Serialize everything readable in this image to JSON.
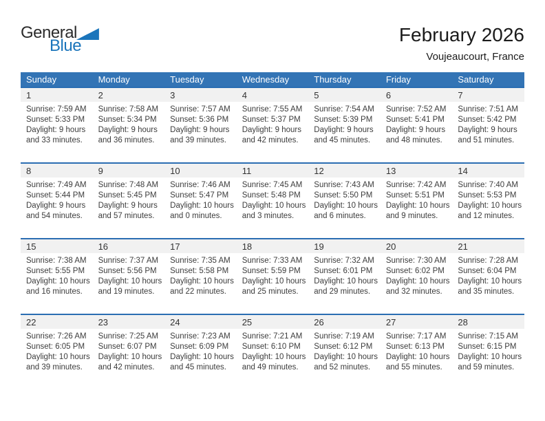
{
  "logo": {
    "text_general": "General",
    "text_blue": "Blue"
  },
  "header": {
    "month_title": "February 2026",
    "location": "Voujeaucourt, France"
  },
  "colors": {
    "header_blue": "#3374b5",
    "line_blue": "#2a6db2",
    "strip_gray": "#f1f1f1",
    "logo_blue": "#1b75bb"
  },
  "calendar": {
    "weekdays": [
      "Sunday",
      "Monday",
      "Tuesday",
      "Wednesday",
      "Thursday",
      "Friday",
      "Saturday"
    ],
    "weeks": [
      [
        {
          "day": "1",
          "sunrise": "Sunrise: 7:59 AM",
          "sunset": "Sunset: 5:33 PM",
          "daylight1": "Daylight: 9 hours",
          "daylight2": "and 33 minutes."
        },
        {
          "day": "2",
          "sunrise": "Sunrise: 7:58 AM",
          "sunset": "Sunset: 5:34 PM",
          "daylight1": "Daylight: 9 hours",
          "daylight2": "and 36 minutes."
        },
        {
          "day": "3",
          "sunrise": "Sunrise: 7:57 AM",
          "sunset": "Sunset: 5:36 PM",
          "daylight1": "Daylight: 9 hours",
          "daylight2": "and 39 minutes."
        },
        {
          "day": "4",
          "sunrise": "Sunrise: 7:55 AM",
          "sunset": "Sunset: 5:37 PM",
          "daylight1": "Daylight: 9 hours",
          "daylight2": "and 42 minutes."
        },
        {
          "day": "5",
          "sunrise": "Sunrise: 7:54 AM",
          "sunset": "Sunset: 5:39 PM",
          "daylight1": "Daylight: 9 hours",
          "daylight2": "and 45 minutes."
        },
        {
          "day": "6",
          "sunrise": "Sunrise: 7:52 AM",
          "sunset": "Sunset: 5:41 PM",
          "daylight1": "Daylight: 9 hours",
          "daylight2": "and 48 minutes."
        },
        {
          "day": "7",
          "sunrise": "Sunrise: 7:51 AM",
          "sunset": "Sunset: 5:42 PM",
          "daylight1": "Daylight: 9 hours",
          "daylight2": "and 51 minutes."
        }
      ],
      [
        {
          "day": "8",
          "sunrise": "Sunrise: 7:49 AM",
          "sunset": "Sunset: 5:44 PM",
          "daylight1": "Daylight: 9 hours",
          "daylight2": "and 54 minutes."
        },
        {
          "day": "9",
          "sunrise": "Sunrise: 7:48 AM",
          "sunset": "Sunset: 5:45 PM",
          "daylight1": "Daylight: 9 hours",
          "daylight2": "and 57 minutes."
        },
        {
          "day": "10",
          "sunrise": "Sunrise: 7:46 AM",
          "sunset": "Sunset: 5:47 PM",
          "daylight1": "Daylight: 10 hours",
          "daylight2": "and 0 minutes."
        },
        {
          "day": "11",
          "sunrise": "Sunrise: 7:45 AM",
          "sunset": "Sunset: 5:48 PM",
          "daylight1": "Daylight: 10 hours",
          "daylight2": "and 3 minutes."
        },
        {
          "day": "12",
          "sunrise": "Sunrise: 7:43 AM",
          "sunset": "Sunset: 5:50 PM",
          "daylight1": "Daylight: 10 hours",
          "daylight2": "and 6 minutes."
        },
        {
          "day": "13",
          "sunrise": "Sunrise: 7:42 AM",
          "sunset": "Sunset: 5:51 PM",
          "daylight1": "Daylight: 10 hours",
          "daylight2": "and 9 minutes."
        },
        {
          "day": "14",
          "sunrise": "Sunrise: 7:40 AM",
          "sunset": "Sunset: 5:53 PM",
          "daylight1": "Daylight: 10 hours",
          "daylight2": "and 12 minutes."
        }
      ],
      [
        {
          "day": "15",
          "sunrise": "Sunrise: 7:38 AM",
          "sunset": "Sunset: 5:55 PM",
          "daylight1": "Daylight: 10 hours",
          "daylight2": "and 16 minutes."
        },
        {
          "day": "16",
          "sunrise": "Sunrise: 7:37 AM",
          "sunset": "Sunset: 5:56 PM",
          "daylight1": "Daylight: 10 hours",
          "daylight2": "and 19 minutes."
        },
        {
          "day": "17",
          "sunrise": "Sunrise: 7:35 AM",
          "sunset": "Sunset: 5:58 PM",
          "daylight1": "Daylight: 10 hours",
          "daylight2": "and 22 minutes."
        },
        {
          "day": "18",
          "sunrise": "Sunrise: 7:33 AM",
          "sunset": "Sunset: 5:59 PM",
          "daylight1": "Daylight: 10 hours",
          "daylight2": "and 25 minutes."
        },
        {
          "day": "19",
          "sunrise": "Sunrise: 7:32 AM",
          "sunset": "Sunset: 6:01 PM",
          "daylight1": "Daylight: 10 hours",
          "daylight2": "and 29 minutes."
        },
        {
          "day": "20",
          "sunrise": "Sunrise: 7:30 AM",
          "sunset": "Sunset: 6:02 PM",
          "daylight1": "Daylight: 10 hours",
          "daylight2": "and 32 minutes."
        },
        {
          "day": "21",
          "sunrise": "Sunrise: 7:28 AM",
          "sunset": "Sunset: 6:04 PM",
          "daylight1": "Daylight: 10 hours",
          "daylight2": "and 35 minutes."
        }
      ],
      [
        {
          "day": "22",
          "sunrise": "Sunrise: 7:26 AM",
          "sunset": "Sunset: 6:05 PM",
          "daylight1": "Daylight: 10 hours",
          "daylight2": "and 39 minutes."
        },
        {
          "day": "23",
          "sunrise": "Sunrise: 7:25 AM",
          "sunset": "Sunset: 6:07 PM",
          "daylight1": "Daylight: 10 hours",
          "daylight2": "and 42 minutes."
        },
        {
          "day": "24",
          "sunrise": "Sunrise: 7:23 AM",
          "sunset": "Sunset: 6:09 PM",
          "daylight1": "Daylight: 10 hours",
          "daylight2": "and 45 minutes."
        },
        {
          "day": "25",
          "sunrise": "Sunrise: 7:21 AM",
          "sunset": "Sunset: 6:10 PM",
          "daylight1": "Daylight: 10 hours",
          "daylight2": "and 49 minutes."
        },
        {
          "day": "26",
          "sunrise": "Sunrise: 7:19 AM",
          "sunset": "Sunset: 6:12 PM",
          "daylight1": "Daylight: 10 hours",
          "daylight2": "and 52 minutes."
        },
        {
          "day": "27",
          "sunrise": "Sunrise: 7:17 AM",
          "sunset": "Sunset: 6:13 PM",
          "daylight1": "Daylight: 10 hours",
          "daylight2": "and 55 minutes."
        },
        {
          "day": "28",
          "sunrise": "Sunrise: 7:15 AM",
          "sunset": "Sunset: 6:15 PM",
          "daylight1": "Daylight: 10 hours",
          "daylight2": "and 59 minutes."
        }
      ]
    ]
  }
}
